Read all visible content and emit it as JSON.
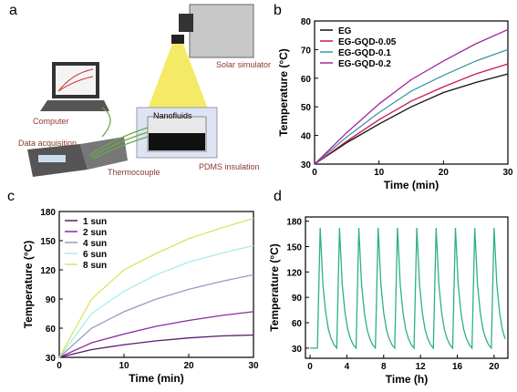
{
  "panel_a": {
    "label": "a",
    "solar_simulator": "Solar simulator",
    "nanofluids": "Nanofluids",
    "computer": "Computer",
    "data_acquisition": "Data acquisition",
    "thermocouple": "Thermocouple",
    "pdms_insulation": "PDMS insulation"
  },
  "chart_data": [
    {
      "type": "line",
      "panel_label": "b",
      "x_label": "Time (min)",
      "y_label": "Temperature (°C)",
      "x": [
        0,
        5,
        10,
        15,
        20,
        25,
        30
      ],
      "series": [
        {
          "name": "EG",
          "color": "#111111",
          "values": [
            30,
            37.5,
            44,
            50,
            55,
            58.5,
            61.5
          ]
        },
        {
          "name": "EG-GQD-0.05",
          "color": "#c8174f",
          "values": [
            30,
            38,
            45.5,
            52,
            57,
            61.5,
            65
          ]
        },
        {
          "name": "EG-GQD-0.1",
          "color": "#3a98a8",
          "values": [
            30,
            39.5,
            48,
            55.5,
            61,
            66,
            70
          ]
        },
        {
          "name": "EG-GQD-0.2",
          "color": "#a0259a",
          "values": [
            30,
            41,
            51,
            59.5,
            66,
            72,
            77
          ]
        }
      ],
      "xlim": [
        0,
        30
      ],
      "xticks": [
        0,
        10,
        20,
        30
      ],
      "ylim": [
        30,
        80
      ],
      "yticks": [
        30,
        40,
        50,
        60,
        70,
        80
      ],
      "legend": "upper left"
    },
    {
      "type": "line",
      "panel_label": "c",
      "x_label": "Time (min)",
      "y_label": "Temperature (°C)",
      "x": [
        0,
        5,
        10,
        15,
        20,
        25,
        30
      ],
      "series": [
        {
          "name": "1 sun",
          "color": "#5a1a6e",
          "values": [
            30,
            38,
            43,
            47,
            50,
            52,
            53
          ]
        },
        {
          "name": "2 sun",
          "color": "#8a2aa0",
          "values": [
            30,
            45,
            54,
            62,
            68,
            73,
            77
          ]
        },
        {
          "name": "4 sun",
          "color": "#9a9ac4",
          "values": [
            30,
            60,
            77,
            90,
            100,
            108,
            115
          ]
        },
        {
          "name": "6 sun",
          "color": "#a8ecec",
          "values": [
            30,
            75,
            98,
            115,
            128,
            137,
            145
          ]
        },
        {
          "name": "8 sun",
          "color": "#d4e860",
          "values": [
            30,
            90,
            120,
            137,
            152,
            163,
            173
          ]
        }
      ],
      "xlim": [
        0,
        30
      ],
      "xticks": [
        0,
        10,
        20,
        30
      ],
      "ylim": [
        30,
        180
      ],
      "yticks": [
        30,
        60,
        90,
        120,
        150,
        180
      ],
      "legend": "upper left"
    },
    {
      "type": "line",
      "panel_label": "d",
      "x_label": "Time (h)",
      "y_label": "Temperature (°C)",
      "color": "#2cb08a",
      "x": [
        0,
        0.8,
        1.1,
        1.4,
        1.7,
        2.0,
        2.3,
        2.6,
        2.9,
        3.2,
        3.5,
        3.8,
        4.1,
        4.4,
        4.7,
        5.0,
        5.3,
        5.6,
        5.9,
        6.2,
        6.5,
        6.8,
        7.1,
        7.4,
        7.7,
        8.0,
        8.3,
        8.6,
        8.9,
        9.2,
        9.5,
        9.8,
        10.1,
        10.4,
        10.7,
        11.0,
        11.3,
        11.6,
        11.9,
        12.2,
        12.5,
        12.8,
        13.1,
        13.4,
        13.7,
        14.0,
        14.3,
        14.6,
        14.9,
        15.2,
        15.5,
        15.8,
        16.1,
        16.4,
        16.7,
        17.0,
        17.3,
        17.6,
        17.9,
        18.2,
        18.5,
        18.8,
        19.1,
        19.4,
        19.7,
        20.0,
        20.3,
        20.6,
        20.9,
        21.2
      ],
      "values": [
        30,
        30,
        172,
        105,
        72,
        52,
        41,
        34,
        30,
        172,
        105,
        72,
        52,
        41,
        34,
        30,
        172,
        105,
        72,
        52,
        41,
        34,
        30,
        172,
        105,
        72,
        52,
        41,
        34,
        30,
        172,
        105,
        72,
        52,
        41,
        34,
        30,
        172,
        105,
        72,
        52,
        41,
        34,
        30,
        172,
        105,
        72,
        52,
        41,
        34,
        30,
        172,
        105,
        72,
        52,
        41,
        34,
        30,
        172,
        105,
        72,
        52,
        41,
        34,
        30,
        172,
        105,
        72,
        52,
        41
      ],
      "xlim": [
        -0.5,
        21.5
      ],
      "xticks": [
        0,
        4,
        8,
        12,
        16,
        20
      ],
      "ylim": [
        18,
        185
      ],
      "yticks": [
        30,
        60,
        90,
        120,
        150,
        180
      ]
    }
  ]
}
